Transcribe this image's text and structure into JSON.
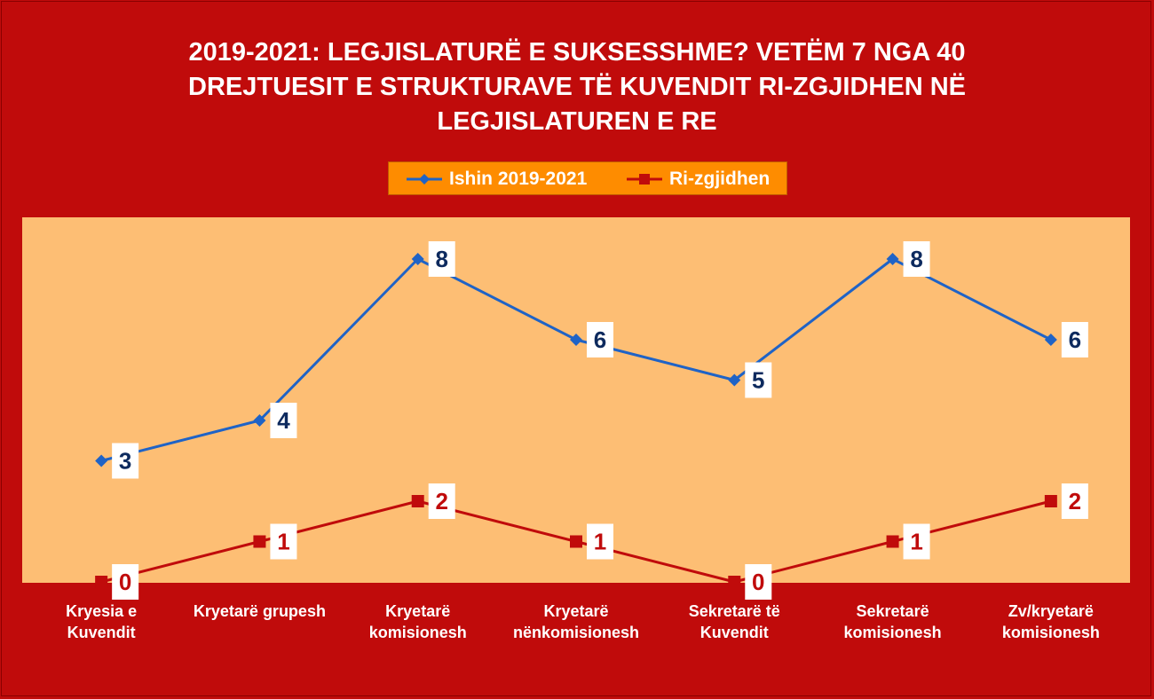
{
  "chart_data": {
    "type": "line",
    "title_lines": [
      "2019-2021: LEGJISLATURË E SUKSESSHME? VETËM 7 NGA 40",
      "DREJTUESIT E STRUKTURAVE TË KUVENDIT RI-ZGJIDHEN NË",
      "LEGJISLATUREN E RE"
    ],
    "categories": [
      [
        "Kryesia e",
        "Kuvendit"
      ],
      [
        "Kryetarë grupesh"
      ],
      [
        "Kryetarë",
        "komisionesh"
      ],
      [
        "Kryetarë",
        "nënkomisionesh"
      ],
      [
        "Sekretarë të",
        "Kuvendit"
      ],
      [
        "Sekretarë",
        "komisionesh"
      ],
      [
        "Zv/kryetarë",
        "komisionesh"
      ]
    ],
    "series": [
      {
        "name": "Ishin 2019-2021",
        "values": [
          3,
          4,
          8,
          6,
          5,
          8,
          6
        ],
        "color": "#1f63c6",
        "label_color": "#0d2a5e",
        "marker": "diamond"
      },
      {
        "name": "Ri-zgjidhen",
        "values": [
          0,
          1,
          2,
          1,
          0,
          1,
          2
        ],
        "color": "#c00b0b",
        "label_color": "#c00b0b",
        "marker": "square"
      }
    ],
    "ylim": [
      0,
      8
    ],
    "grid": false,
    "legend_position": "top",
    "plot_background": "#fdbe74",
    "background": "#c00b0b"
  }
}
